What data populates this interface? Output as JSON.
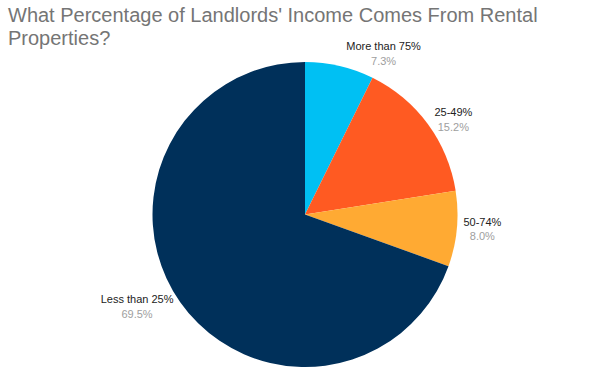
{
  "chart_data": {
    "type": "pie",
    "title": "What Percentage of Landlords' Income Comes From Rental Properties?",
    "categories": [
      "More than 75%",
      "25-49%",
      "50-74%",
      "Less than 25%"
    ],
    "values": [
      7.3,
      15.2,
      8.0,
      69.5
    ],
    "value_labels": [
      "7.3%",
      "15.2%",
      "8.0%",
      "69.5%"
    ],
    "colors": [
      "#00c0f3",
      "#ff5a22",
      "#ffaa33",
      "#00305a"
    ],
    "data_labels": true
  }
}
